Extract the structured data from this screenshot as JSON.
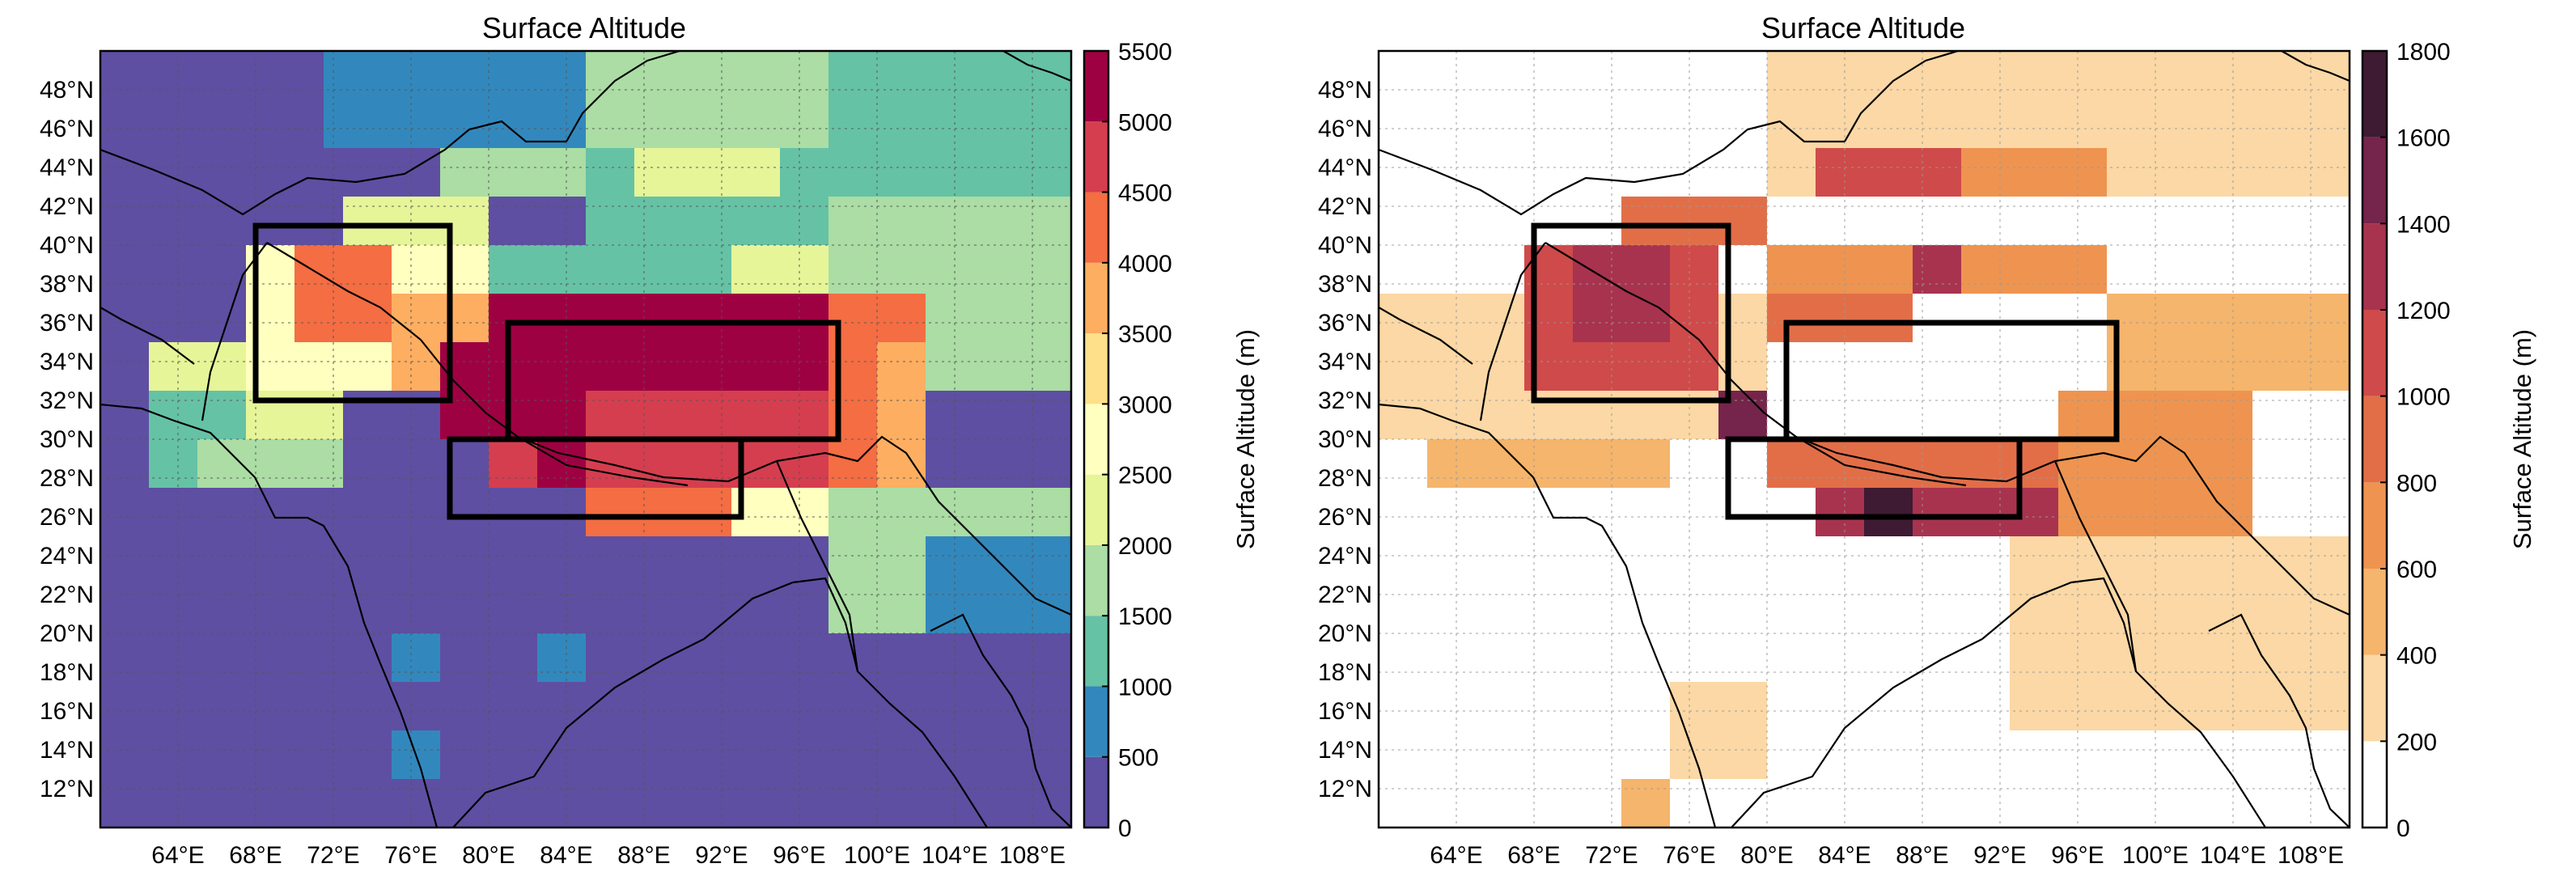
{
  "figure": {
    "panels": [
      {
        "title": "Surface Altitude",
        "colorbar": {
          "label": "Surface Altitude (m)",
          "levels": [
            0,
            500,
            1000,
            1500,
            2000,
            2500,
            3000,
            3500,
            4000,
            4500,
            5000,
            5500
          ],
          "tick_labels": [
            "0",
            "500",
            "1000",
            "1500",
            "2000",
            "2500",
            "3000",
            "3500",
            "4000",
            "4500",
            "5000",
            "5500"
          ],
          "colors": [
            "#5e4fa2",
            "#3288bd",
            "#66c2a5",
            "#abdda4",
            "#e6f598",
            "#ffffbf",
            "#fee08b",
            "#fdae61",
            "#f46d43",
            "#d53e4f",
            "#9e0142"
          ]
        }
      },
      {
        "title": "Surface Altitude",
        "colorbar": {
          "label": "Surface Altitude (m)",
          "levels": [
            0,
            200,
            400,
            600,
            800,
            1000,
            1200,
            1400,
            1600,
            1800
          ],
          "tick_labels": [
            "0",
            "200",
            "400",
            "600",
            "800",
            "1000",
            "1200",
            "1400",
            "1600",
            "1800"
          ],
          "colors": [
            "#ffffff",
            "#fbd8a5",
            "#f5b56c",
            "#ee9450",
            "#e26e48",
            "#cf4a4a",
            "#a8334f",
            "#75244c",
            "#3f1a33"
          ]
        }
      }
    ]
  },
  "chart_data": [
    {
      "type": "heatmap",
      "title": "Surface Altitude",
      "variable": "Surface Altitude (m)",
      "xlim": [
        60,
        110
      ],
      "ylim": [
        10,
        50
      ],
      "grid_resolution_deg": 2.5,
      "x_ticks": [
        "64°E",
        "68°E",
        "72°E",
        "76°E",
        "80°E",
        "84°E",
        "88°E",
        "92°E",
        "96°E",
        "100°E",
        "104°E",
        "108°E"
      ],
      "y_ticks": [
        "12°N",
        "14°N",
        "16°N",
        "18°N",
        "20°N",
        "22°N",
        "24°N",
        "26°N",
        "28°N",
        "30°N",
        "32°N",
        "34°N",
        "36°N",
        "38°N",
        "40°N",
        "42°N",
        "44°N",
        "46°N",
        "48°N"
      ],
      "grid": true,
      "color_levels": [
        0,
        500,
        1000,
        1500,
        2000,
        2500,
        3000,
        3500,
        4000,
        4500,
        5000,
        5500
      ],
      "regions": [
        {
          "lon": [
            68,
            78
          ],
          "lat": [
            32,
            41
          ]
        },
        {
          "lon": [
            81,
            98
          ],
          "lat": [
            30,
            36
          ]
        },
        {
          "lon": [
            78,
            93
          ],
          "lat": [
            26,
            30
          ]
        }
      ],
      "fields": [
        {
          "lon": [
            60,
            110
          ],
          "lat": [
            10,
            50
          ],
          "level_index": 0
        },
        {
          "lon": [
            71.5,
            85
          ],
          "lat": [
            45,
            50
          ],
          "level_index": 1
        },
        {
          "lon": [
            85,
            97.5
          ],
          "lat": [
            45,
            50
          ],
          "level_index": 3
        },
        {
          "lon": [
            97.5,
            110
          ],
          "lat": [
            42.5,
            50
          ],
          "level_index": 2
        },
        {
          "lon": [
            77.5,
            85
          ],
          "lat": [
            42.5,
            45
          ],
          "level_index": 3
        },
        {
          "lon": [
            85,
            97.5
          ],
          "lat": [
            40,
            45
          ],
          "level_index": 2
        },
        {
          "lon": [
            87.5,
            95
          ],
          "lat": [
            42.5,
            45
          ],
          "level_index": 4
        },
        {
          "lon": [
            72.5,
            80
          ],
          "lat": [
            40,
            42.5
          ],
          "level_index": 4
        },
        {
          "lon": [
            80,
            87.5
          ],
          "lat": [
            37.5,
            40
          ],
          "level_index": 2
        },
        {
          "lon": [
            97.5,
            110
          ],
          "lat": [
            32.5,
            42.5
          ],
          "level_index": 3
        },
        {
          "lon": [
            87.5,
            97.5
          ],
          "lat": [
            37.5,
            40
          ],
          "level_index": 2
        },
        {
          "lon": [
            92.5,
            97.5
          ],
          "lat": [
            37.5,
            40
          ],
          "level_index": 4
        },
        {
          "lon": [
            95,
            100
          ],
          "lat": [
            35,
            37.5
          ],
          "level_index": 7
        },
        {
          "lon": [
            62.5,
            72.5
          ],
          "lat": [
            30,
            35
          ],
          "level_index": 4
        },
        {
          "lon": [
            62.5,
            67.5
          ],
          "lat": [
            27.5,
            32.5
          ],
          "level_index": 2
        },
        {
          "lon": [
            65,
            72.5
          ],
          "lat": [
            27.5,
            30
          ],
          "level_index": 3
        },
        {
          "lon": [
            67.5,
            80
          ],
          "lat": [
            32.5,
            40
          ],
          "level_index": 5
        },
        {
          "lon": [
            70,
            75
          ],
          "lat": [
            35,
            40
          ],
          "level_index": 8
        },
        {
          "lon": [
            75,
            80
          ],
          "lat": [
            32.5,
            37.5
          ],
          "level_index": 7
        },
        {
          "lon": [
            77.5,
            80
          ],
          "lat": [
            30,
            35
          ],
          "level_index": 10
        },
        {
          "lon": [
            80,
            100
          ],
          "lat": [
            30,
            37.5
          ],
          "level_index": 10
        },
        {
          "lon": [
            85,
            100
          ],
          "lat": [
            30,
            32.5
          ],
          "level_index": 9
        },
        {
          "lon": [
            97.5,
            102.5
          ],
          "lat": [
            27.5,
            37.5
          ],
          "level_index": 8
        },
        {
          "lon": [
            100,
            102.5
          ],
          "lat": [
            25,
            35
          ],
          "level_index": 7
        },
        {
          "lon": [
            80,
            97.5
          ],
          "lat": [
            27.5,
            30
          ],
          "level_index": 9
        },
        {
          "lon": [
            85,
            92.5
          ],
          "lat": [
            25,
            27.5
          ],
          "level_index": 8
        },
        {
          "lon": [
            92.5,
            97.5
          ],
          "lat": [
            25,
            27.5
          ],
          "level_index": 5
        },
        {
          "lon": [
            82.5,
            85
          ],
          "lat": [
            27.5,
            30
          ],
          "level_index": 10
        },
        {
          "lon": [
            97.5,
            110
          ],
          "lat": [
            20,
            27.5
          ],
          "level_index": 3
        },
        {
          "lon": [
            102.5,
            110
          ],
          "lat": [
            20,
            25
          ],
          "level_index": 1
        },
        {
          "lon": [
            75,
            77.5
          ],
          "lat": [
            17.5,
            20
          ],
          "level_index": 1
        },
        {
          "lon": [
            82.5,
            85
          ],
          "lat": [
            17.5,
            20
          ],
          "level_index": 1
        },
        {
          "lon": [
            75,
            77.5
          ],
          "lat": [
            12.5,
            15
          ],
          "level_index": 1
        }
      ]
    },
    {
      "type": "heatmap",
      "title": "Surface Altitude",
      "variable": "Surface Altitude (m)",
      "xlim": [
        60,
        110
      ],
      "ylim": [
        10,
        50
      ],
      "grid_resolution_deg": 2.5,
      "x_ticks": [
        "64°E",
        "68°E",
        "72°E",
        "76°E",
        "80°E",
        "84°E",
        "88°E",
        "92°E",
        "96°E",
        "100°E",
        "104°E",
        "108°E"
      ],
      "y_ticks": [
        "12°N",
        "14°N",
        "16°N",
        "18°N",
        "20°N",
        "22°N",
        "24°N",
        "26°N",
        "28°N",
        "30°N",
        "32°N",
        "34°N",
        "36°N",
        "38°N",
        "40°N",
        "42°N",
        "44°N",
        "46°N",
        "48°N"
      ],
      "grid": true,
      "color_levels": [
        0,
        200,
        400,
        600,
        800,
        1000,
        1200,
        1400,
        1600,
        1800
      ],
      "regions": [
        {
          "lon": [
            68,
            78
          ],
          "lat": [
            32,
            41
          ]
        },
        {
          "lon": [
            81,
            98
          ],
          "lat": [
            30,
            36
          ]
        },
        {
          "lon": [
            78,
            93
          ],
          "lat": [
            26,
            30
          ]
        }
      ],
      "fields": [
        {
          "lon": [
            80,
            110
          ],
          "lat": [
            42.5,
            50
          ],
          "level_index": 1
        },
        {
          "lon": [
            82.5,
            90
          ],
          "lat": [
            42.5,
            45
          ],
          "level_index": 5
        },
        {
          "lon": [
            90,
            97.5
          ],
          "lat": [
            42.5,
            45
          ],
          "level_index": 3
        },
        {
          "lon": [
            72.5,
            80
          ],
          "lat": [
            40,
            42.5
          ],
          "level_index": 4
        },
        {
          "lon": [
            80,
            97.5
          ],
          "lat": [
            37.5,
            40
          ],
          "level_index": 3
        },
        {
          "lon": [
            87.5,
            90
          ],
          "lat": [
            37.5,
            40
          ],
          "level_index": 6
        },
        {
          "lon": [
            60,
            80
          ],
          "lat": [
            30,
            37.5
          ],
          "level_index": 1
        },
        {
          "lon": [
            67.5,
            77.5
          ],
          "lat": [
            32.5,
            40
          ],
          "level_index": 5
        },
        {
          "lon": [
            70,
            75
          ],
          "lat": [
            35,
            40
          ],
          "level_index": 6
        },
        {
          "lon": [
            77.5,
            80
          ],
          "lat": [
            30,
            32.5
          ],
          "level_index": 7
        },
        {
          "lon": [
            80,
            87.5
          ],
          "lat": [
            35,
            37.5
          ],
          "level_index": 4
        },
        {
          "lon": [
            97.5,
            110
          ],
          "lat": [
            32.5,
            37.5
          ],
          "level_index": 2
        },
        {
          "lon": [
            102.5,
            105
          ],
          "lat": [
            30,
            32.5
          ],
          "level_index": 5
        },
        {
          "lon": [
            80,
            97.5
          ],
          "lat": [
            27.5,
            30
          ],
          "level_index": 4
        },
        {
          "lon": [
            82.5,
            95
          ],
          "lat": [
            25,
            27.5
          ],
          "level_index": 6
        },
        {
          "lon": [
            85,
            87.5
          ],
          "lat": [
            25,
            27.5
          ],
          "level_index": 8
        },
        {
          "lon": [
            95,
            105
          ],
          "lat": [
            25,
            32.5
          ],
          "level_index": 3
        },
        {
          "lon": [
            62.5,
            75
          ],
          "lat": [
            27.5,
            30
          ],
          "level_index": 2
        },
        {
          "lon": [
            92.5,
            110
          ],
          "lat": [
            15,
            25
          ],
          "level_index": 1
        },
        {
          "lon": [
            75,
            80
          ],
          "lat": [
            12.5,
            17.5
          ],
          "level_index": 1
        },
        {
          "lon": [
            72.5,
            75
          ],
          "lat": [
            10,
            12.5
          ],
          "level_index": 2
        }
      ]
    }
  ]
}
